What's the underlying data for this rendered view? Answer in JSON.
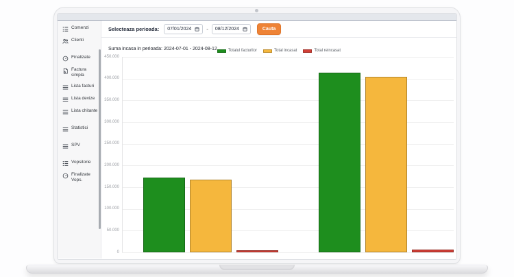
{
  "sidebar": {
    "groups": [
      {
        "items": [
          {
            "icon": "ordered-list-icon",
            "label": "Comenzi"
          },
          {
            "icon": "users-icon",
            "label": "Clienti"
          }
        ]
      },
      {
        "items": [
          {
            "icon": "gauge-icon",
            "label": "Finalizate"
          },
          {
            "icon": "invoice-icon",
            "label": "Factura simpla"
          },
          {
            "icon": "list-icon",
            "label": "Lista facturi"
          },
          {
            "icon": "list-icon",
            "label": "Lista devize"
          },
          {
            "icon": "list-icon",
            "label": "Lista chitante"
          }
        ]
      },
      {
        "items": [
          {
            "icon": "list-icon",
            "label": "Statistici"
          }
        ]
      },
      {
        "items": [
          {
            "icon": "list-icon",
            "label": "SPV"
          }
        ]
      },
      {
        "items": [
          {
            "icon": "ordered-list-icon",
            "label": "Vopsitorie"
          },
          {
            "icon": "gauge-icon",
            "label": "Finalizate Vops."
          }
        ]
      }
    ]
  },
  "toolbar": {
    "period_label": "Selecteaza perioada:",
    "date_from": "07/01/2024",
    "date_to": "08/12/2024",
    "separator": "-",
    "search_button": "Cauta",
    "calendar_icon": "calendar-icon"
  },
  "summary": {
    "text": "Suma incasa in perioada: 2024-07-01 - 2024-08-12"
  },
  "chart_data": {
    "type": "bar",
    "title": "",
    "xlabel": "",
    "ylabel": "",
    "categories": [
      "",
      ""
    ],
    "series": [
      {
        "name": "Totalul facturilor",
        "color": "#1e8e1e",
        "values": [
          172000,
          413000
        ]
      },
      {
        "name": "Total incasat",
        "color": "#f5b73d",
        "values": [
          167000,
          404000
        ]
      },
      {
        "name": "Total reincasat",
        "color": "#d23f36",
        "values": [
          5000,
          7000
        ]
      }
    ],
    "ylim": [
      0,
      450000
    ],
    "ytick_step": 50000,
    "ytick_labels": [
      "450.000",
      "400.000",
      "350.000",
      "300.000",
      "250.000",
      "200.000",
      "150.000",
      "100.000",
      "50.000",
      "0"
    ],
    "grid": true,
    "legend_position": "top"
  },
  "colors": {
    "accent_orange": "#ee8336",
    "series_green": "#1e8e1e",
    "series_yellow": "#f5b73d",
    "series_red": "#d23f36",
    "sidebar_bg": "#f7f7f8",
    "topstrip_bg": "#e4e7ec"
  }
}
